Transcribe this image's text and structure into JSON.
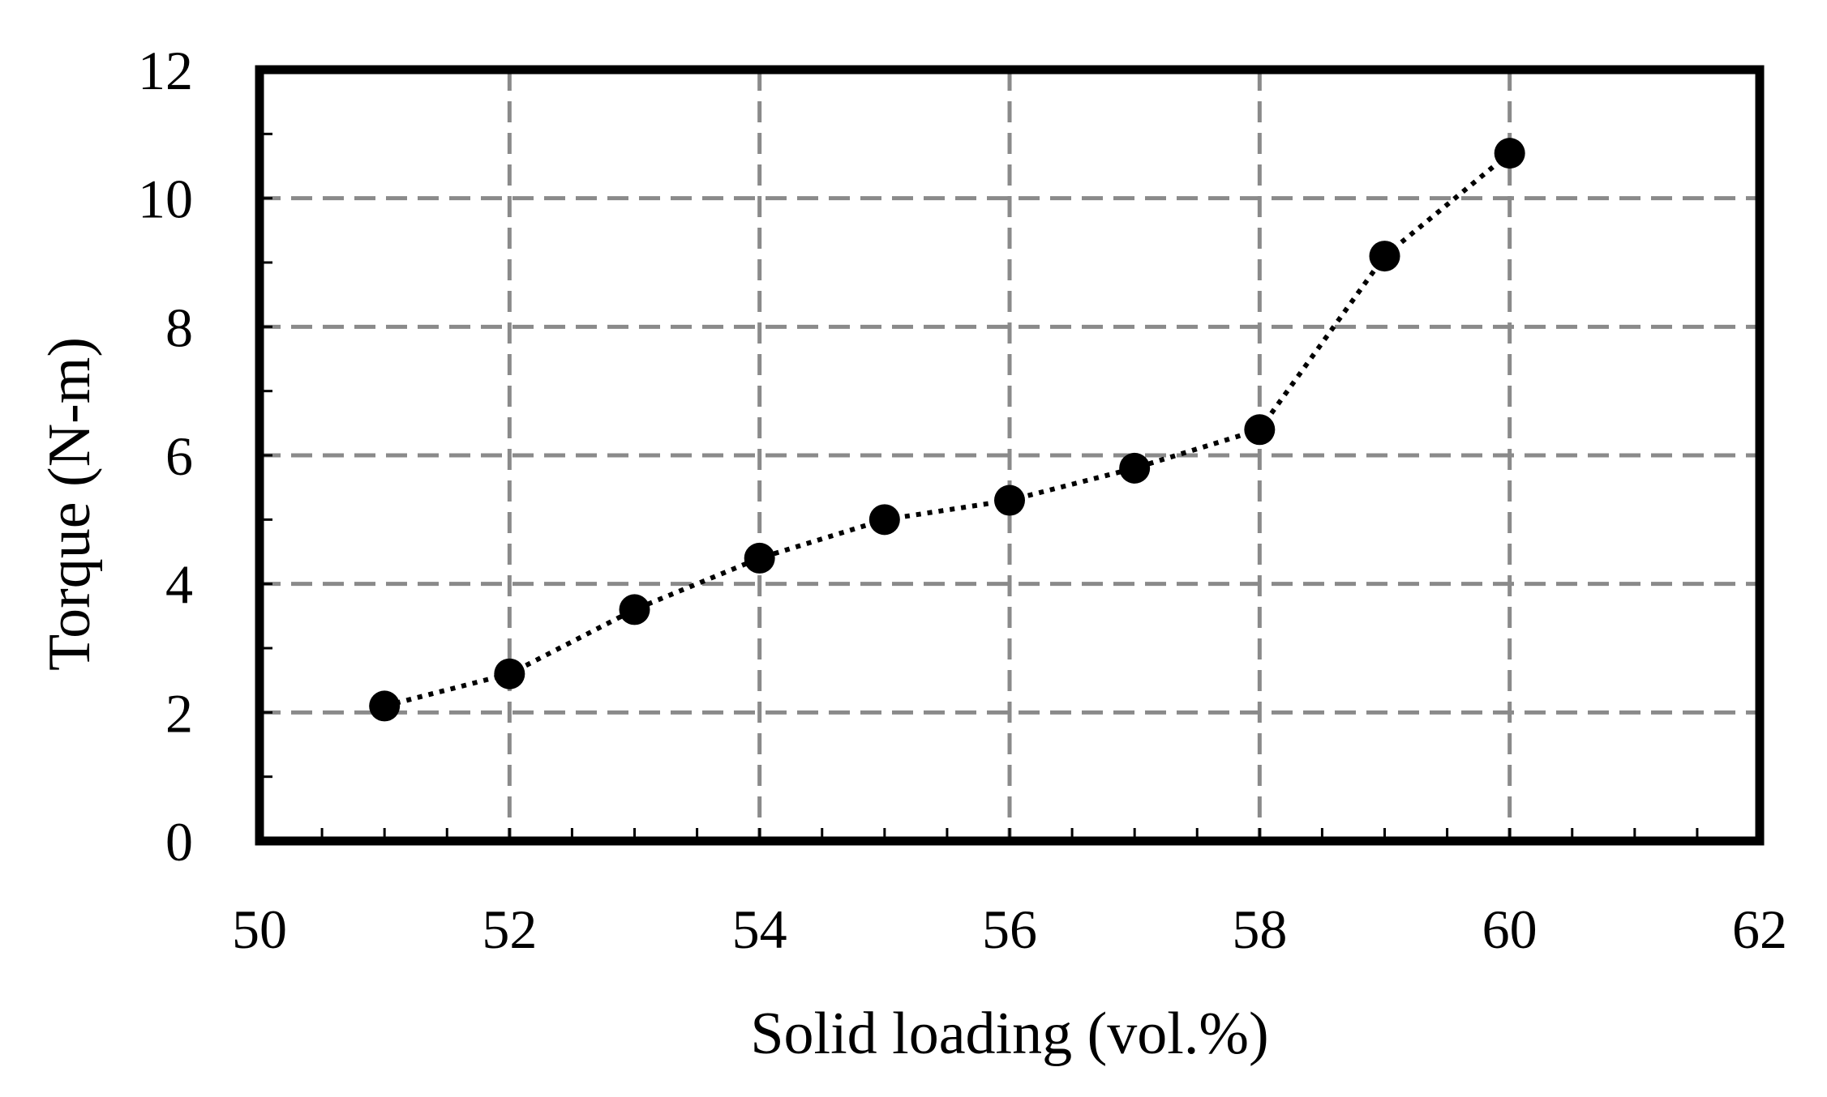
{
  "chart_data": {
    "type": "scatter",
    "xlabel": "Solid loading (vol.%)",
    "ylabel": "Torque (N-m)",
    "xlim": [
      50,
      62
    ],
    "ylim": [
      0,
      12
    ],
    "xticks": [
      "50",
      "52",
      "54",
      "56",
      "58",
      "60",
      "62"
    ],
    "yticks": [
      "0",
      "2",
      "4",
      "6",
      "8",
      "10",
      "12"
    ],
    "grid": true,
    "legend": "none",
    "trendline": "dotted",
    "series": [
      {
        "x": [
          51,
          52,
          53,
          54,
          55,
          56,
          57,
          58,
          59,
          60
        ],
        "y": [
          2.1,
          2.6,
          3.6,
          4.4,
          5.0,
          5.3,
          5.8,
          6.4,
          9.1,
          10.7
        ]
      }
    ],
    "marker_color": "#000000"
  }
}
